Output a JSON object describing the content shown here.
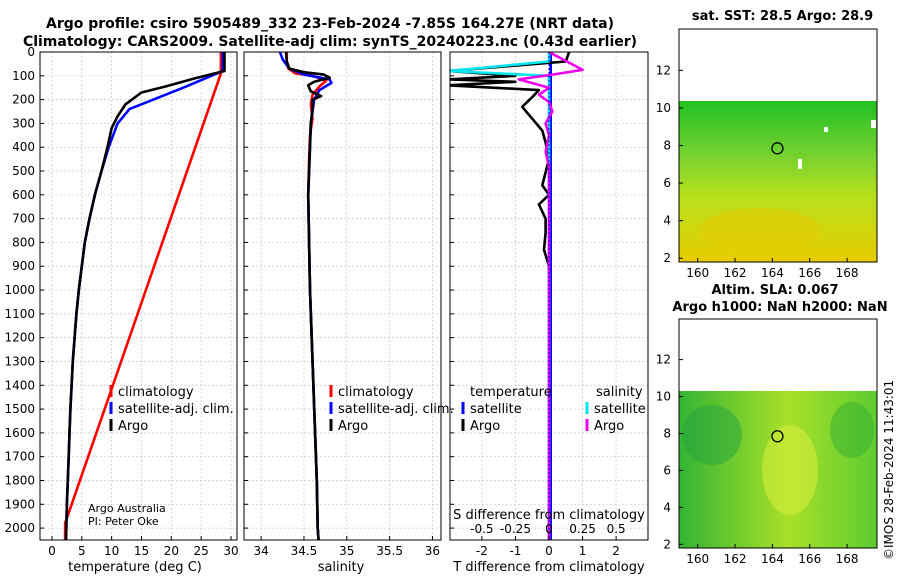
{
  "titles": {
    "line1": "Argo profile: csiro 5905489_332 23-Feb-2024 -7.85S 164.27E (NRT data)",
    "line2": "Climatology: CARS2009. Satellite-adj clim: synTS_20240223.nc (0.43d earlier)"
  },
  "map1_title": "sat. SST: 28.5 Argo: 28.9",
  "map2_title1": "Altim. SLA: 0.067",
  "map2_title2": "Argo h1000: NaN h2000: NaN",
  "credit": "©IMOS 28-Feb-2024 11:43:01",
  "legend_temp": {
    "l1": "climatology",
    "l2": "satellite-adj. clim.",
    "l3": "Argo"
  },
  "legend_sal": {
    "l1": "climatology",
    "l2": "satellite-adj. clim.",
    "l3": "Argo"
  },
  "legend_diff": {
    "h1": "temperature",
    "h2": "salinity",
    "t_sat": "satellite",
    "t_argo": "Argo",
    "s_sat": "satellite",
    "s_argo": "Argo"
  },
  "annotation": {
    "a1": "Argo Australia",
    "a2": "PI: Peter Oke"
  },
  "colors": {
    "clim": "#ff0000",
    "sat": "#0000ff",
    "argo": "#000000",
    "s_sat": "#00e5ee",
    "s_argo": "#ee00ee",
    "map_high": "#d5e400",
    "map_low": "#30b030"
  },
  "chart_data": [
    {
      "type": "line",
      "title": "",
      "xlabel": "temperature (deg C)",
      "ylabel": "",
      "xlim": [
        -2,
        31
      ],
      "ylim": [
        2050,
        0
      ],
      "xticks": [
        0,
        5,
        10,
        15,
        20,
        25,
        30
      ],
      "yticks": [
        0,
        100,
        200,
        300,
        400,
        500,
        600,
        700,
        800,
        900,
        1000,
        1100,
        1200,
        1300,
        1400,
        1500,
        1600,
        1700,
        1800,
        1900,
        2000
      ],
      "series": [
        {
          "name": "climatology",
          "color": "#ff0000",
          "points": [
            [
              28.3,
              0
            ],
            [
              28.3,
              90
            ],
            [
              2.2,
              1980
            ],
            [
              2.2,
              2050
            ]
          ]
        },
        {
          "name": "satellite-adj. clim.",
          "color": "#0000ff",
          "points": [
            [
              28.6,
              0
            ],
            [
              28.6,
              80
            ],
            [
              22,
              150
            ],
            [
              17,
              200
            ],
            [
              13,
              240
            ],
            [
              11,
              300
            ],
            [
              9.5,
              400
            ],
            [
              8.3,
              500
            ],
            [
              7.2,
              600
            ],
            [
              6.3,
              700
            ],
            [
              5.5,
              800
            ],
            [
              5,
              900
            ],
            [
              4.5,
              1000
            ],
            [
              4.1,
              1100
            ],
            [
              3.8,
              1200
            ],
            [
              3.5,
              1300
            ],
            [
              3.3,
              1400
            ],
            [
              3.1,
              1500
            ],
            [
              2.95,
              1600
            ],
            [
              2.8,
              1700
            ],
            [
              2.65,
              1800
            ],
            [
              2.5,
              1900
            ],
            [
              2.4,
              2000
            ],
            [
              2.35,
              2050
            ]
          ]
        },
        {
          "name": "Argo",
          "color": "#000000",
          "points": [
            [
              28.9,
              0
            ],
            [
              28.9,
              80
            ],
            [
              24,
              110
            ],
            [
              19,
              145
            ],
            [
              15,
              170
            ],
            [
              12.3,
              220
            ],
            [
              11,
              270
            ],
            [
              10,
              320
            ],
            [
              9.3,
              400
            ],
            [
              8.3,
              500
            ],
            [
              7.2,
              600
            ],
            [
              6.3,
              700
            ],
            [
              5.5,
              800
            ],
            [
              5,
              900
            ],
            [
              4.5,
              1000
            ],
            [
              4.1,
              1100
            ],
            [
              3.8,
              1200
            ],
            [
              3.5,
              1300
            ],
            [
              3.3,
              1400
            ],
            [
              3.1,
              1500
            ],
            [
              2.95,
              1600
            ],
            [
              2.8,
              1700
            ],
            [
              2.65,
              1800
            ],
            [
              2.5,
              1900
            ],
            [
              2.4,
              2000
            ],
            [
              2.35,
              2050
            ]
          ]
        }
      ]
    },
    {
      "type": "line",
      "title": "",
      "xlabel": "salinity",
      "ylabel": "",
      "xlim": [
        33.8,
        36.1
      ],
      "ylim": [
        2050,
        0
      ],
      "xticks": [
        34,
        34.5,
        35,
        35.5,
        36
      ],
      "xticklabels": [
        "34",
        "34.5",
        "35",
        "35.5",
        "36"
      ],
      "series": [
        {
          "name": "climatology",
          "color": "#ff0000",
          "points": [
            [
              34.3,
              0
            ],
            [
              34.3,
              50
            ],
            [
              34.32,
              70
            ],
            [
              34.4,
              90
            ],
            [
              34.6,
              100
            ],
            [
              34.76,
              120
            ],
            [
              34.68,
              145
            ],
            [
              34.6,
              180
            ],
            [
              34.58,
              220
            ],
            [
              34.6,
              280
            ],
            [
              34.57,
              350
            ],
            [
              34.56,
              450
            ],
            [
              34.55,
              600
            ],
            [
              34.56,
              800
            ],
            [
              34.57,
              1000
            ],
            [
              34.59,
              1200
            ],
            [
              34.61,
              1400
            ],
            [
              34.63,
              1600
            ],
            [
              34.65,
              1800
            ],
            [
              34.66,
              2000
            ],
            [
              34.67,
              2050
            ]
          ]
        },
        {
          "name": "satellite-adj. clim.",
          "color": "#0000ff",
          "points": [
            [
              34.22,
              0
            ],
            [
              34.25,
              30
            ],
            [
              34.33,
              70
            ],
            [
              34.5,
              95
            ],
            [
              34.8,
              115
            ],
            [
              34.82,
              130
            ],
            [
              34.68,
              160
            ],
            [
              34.62,
              200
            ],
            [
              34.6,
              250
            ],
            [
              34.58,
              300
            ],
            [
              34.57,
              400
            ],
            [
              34.56,
              500
            ],
            [
              34.55,
              600
            ],
            [
              34.56,
              800
            ],
            [
              34.57,
              1000
            ],
            [
              34.59,
              1200
            ],
            [
              34.61,
              1400
            ],
            [
              34.63,
              1600
            ],
            [
              34.65,
              1800
            ],
            [
              34.66,
              2000
            ],
            [
              34.67,
              2050
            ]
          ]
        },
        {
          "name": "Argo",
          "color": "#000000",
          "points": [
            [
              34.29,
              0
            ],
            [
              34.3,
              40
            ],
            [
              34.33,
              70
            ],
            [
              34.5,
              85
            ],
            [
              34.73,
              95
            ],
            [
              34.8,
              108
            ],
            [
              34.62,
              125
            ],
            [
              34.55,
              140
            ],
            [
              34.58,
              165
            ],
            [
              34.7,
              185
            ],
            [
              34.6,
              200
            ],
            [
              34.6,
              240
            ],
            [
              34.58,
              300
            ],
            [
              34.57,
              400
            ],
            [
              34.56,
              500
            ],
            [
              34.55,
              600
            ],
            [
              34.56,
              800
            ],
            [
              34.57,
              1000
            ],
            [
              34.59,
              1200
            ],
            [
              34.61,
              1400
            ],
            [
              34.63,
              1600
            ],
            [
              34.65,
              1800
            ],
            [
              34.66,
              2000
            ],
            [
              34.67,
              2050
            ]
          ]
        }
      ]
    },
    {
      "type": "line",
      "title": "",
      "xlabel": "T difference from climatology",
      "xlabel2": "S difference from climatology",
      "ylabel": "",
      "xlim": [
        -2.95,
        2.95
      ],
      "ylim": [
        2050,
        0
      ],
      "xticks": [
        -2,
        -1,
        0,
        1,
        2
      ],
      "xticklabels": [
        "-2",
        "-1",
        "0",
        "1",
        "2"
      ],
      "xticks2": [
        -0.5,
        -0.25,
        0,
        0.25,
        0.5
      ],
      "xticklabels2": [
        "-0.5",
        "-0.25",
        "0",
        "0.25",
        "0.5"
      ],
      "series": [
        {
          "name": "temperature satellite",
          "color": "#0000ff",
          "points": [
            [
              0.05,
              0
            ],
            [
              0.05,
              2050
            ]
          ]
        },
        {
          "name": "temperature Argo",
          "color": "#000000",
          "points": [
            [
              0.6,
              0
            ],
            [
              0.5,
              40
            ],
            [
              -3,
              80
            ],
            [
              -1,
              100
            ],
            [
              -3,
              115
            ],
            [
              -1,
              125
            ],
            [
              -3,
              140
            ],
            [
              -0.3,
              160
            ],
            [
              -0.5,
              190
            ],
            [
              -0.8,
              230
            ],
            [
              -0.5,
              280
            ],
            [
              -0.2,
              330
            ],
            [
              -0.1,
              380
            ],
            [
              0,
              450
            ],
            [
              -0.2,
              560
            ],
            [
              0,
              600
            ],
            [
              -0.3,
              640
            ],
            [
              -0.1,
              700
            ],
            [
              -0.1,
              760
            ],
            [
              -0.15,
              830
            ],
            [
              0,
              900
            ],
            [
              0,
              2050
            ]
          ]
        },
        {
          "name": "salinity satellite",
          "color": "#00e5ee",
          "points": [
            [
              0,
              0
            ],
            [
              0,
              40
            ],
            [
              -3,
              80
            ],
            [
              0,
              100
            ],
            [
              0,
              2050
            ]
          ]
        },
        {
          "name": "salinity Argo",
          "color": "#ee00ee",
          "points": [
            [
              0,
              0
            ],
            [
              0.4,
              30
            ],
            [
              1.0,
              75
            ],
            [
              0.1,
              95
            ],
            [
              -0.9,
              115
            ],
            [
              0,
              150
            ],
            [
              -0.3,
              180
            ],
            [
              0,
              210
            ],
            [
              0.1,
              250
            ],
            [
              -0.1,
              300
            ],
            [
              0,
              350
            ],
            [
              -0.1,
              420
            ],
            [
              0,
              480
            ],
            [
              0,
              600
            ],
            [
              0,
              800
            ],
            [
              0,
              1000
            ],
            [
              0,
              2050
            ]
          ]
        }
      ]
    },
    {
      "type": "heatmap",
      "title": "sat. SST: 28.5 Argo: 28.9",
      "xlim": [
        159,
        169.6
      ],
      "ylim": [
        1.8,
        14.2
      ],
      "xticks": [
        160,
        162,
        164,
        166,
        168
      ],
      "yticks": [
        2,
        4,
        6,
        8,
        10,
        12
      ],
      "argo_position": [
        164.27,
        7.85
      ]
    },
    {
      "type": "heatmap",
      "title": "Altim. SLA: 0.067",
      "xlim": [
        159,
        169.6
      ],
      "ylim": [
        1.8,
        14.2
      ],
      "xticks": [
        160,
        162,
        164,
        166,
        168
      ],
      "yticks": [
        2,
        4,
        6,
        8,
        10,
        12
      ],
      "argo_position": [
        164.27,
        7.85
      ]
    }
  ]
}
